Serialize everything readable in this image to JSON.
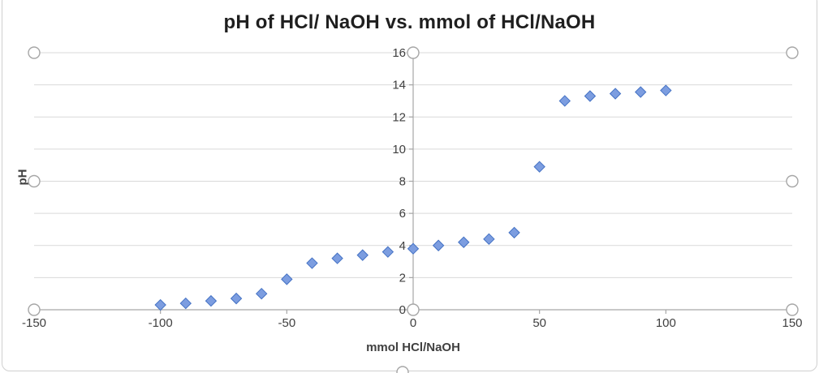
{
  "chart_data": {
    "type": "scatter",
    "title": "pH of HCl/ NaOH vs. mmol of HCl/NaOH",
    "xlabel": "mmol HCl/NaOH",
    "ylabel": "pH",
    "xlim": [
      -150,
      150
    ],
    "ylim": [
      0,
      16
    ],
    "xticks": [
      -150,
      -100,
      -50,
      0,
      50,
      100,
      150
    ],
    "yticks": [
      0,
      2,
      4,
      6,
      8,
      10,
      12,
      14,
      16
    ],
    "grid": true,
    "legend": "none",
    "marker": {
      "shape": "diamond",
      "fill": "#7C9DE0",
      "stroke": "#4472C4",
      "size": 6.5
    },
    "colors": {
      "gridline": "#d9d9d9",
      "axis": "#a6a6a6",
      "handle_stroke": "#a6a6a6",
      "handle_fill": "#ffffff"
    },
    "points": [
      [
        -100,
        0.3
      ],
      [
        -90,
        0.4
      ],
      [
        -80,
        0.55
      ],
      [
        -70,
        0.7
      ],
      [
        -60,
        1.0
      ],
      [
        -50,
        1.9
      ],
      [
        -40,
        2.9
      ],
      [
        -30,
        3.2
      ],
      [
        -20,
        3.4
      ],
      [
        -10,
        3.6
      ],
      [
        0,
        3.8
      ],
      [
        10,
        4.0
      ],
      [
        20,
        4.2
      ],
      [
        30,
        4.4
      ],
      [
        40,
        4.8
      ],
      [
        50,
        8.9
      ],
      [
        60,
        13.0
      ],
      [
        70,
        13.3
      ],
      [
        80,
        13.45
      ],
      [
        90,
        13.55
      ],
      [
        100,
        13.65
      ]
    ]
  }
}
